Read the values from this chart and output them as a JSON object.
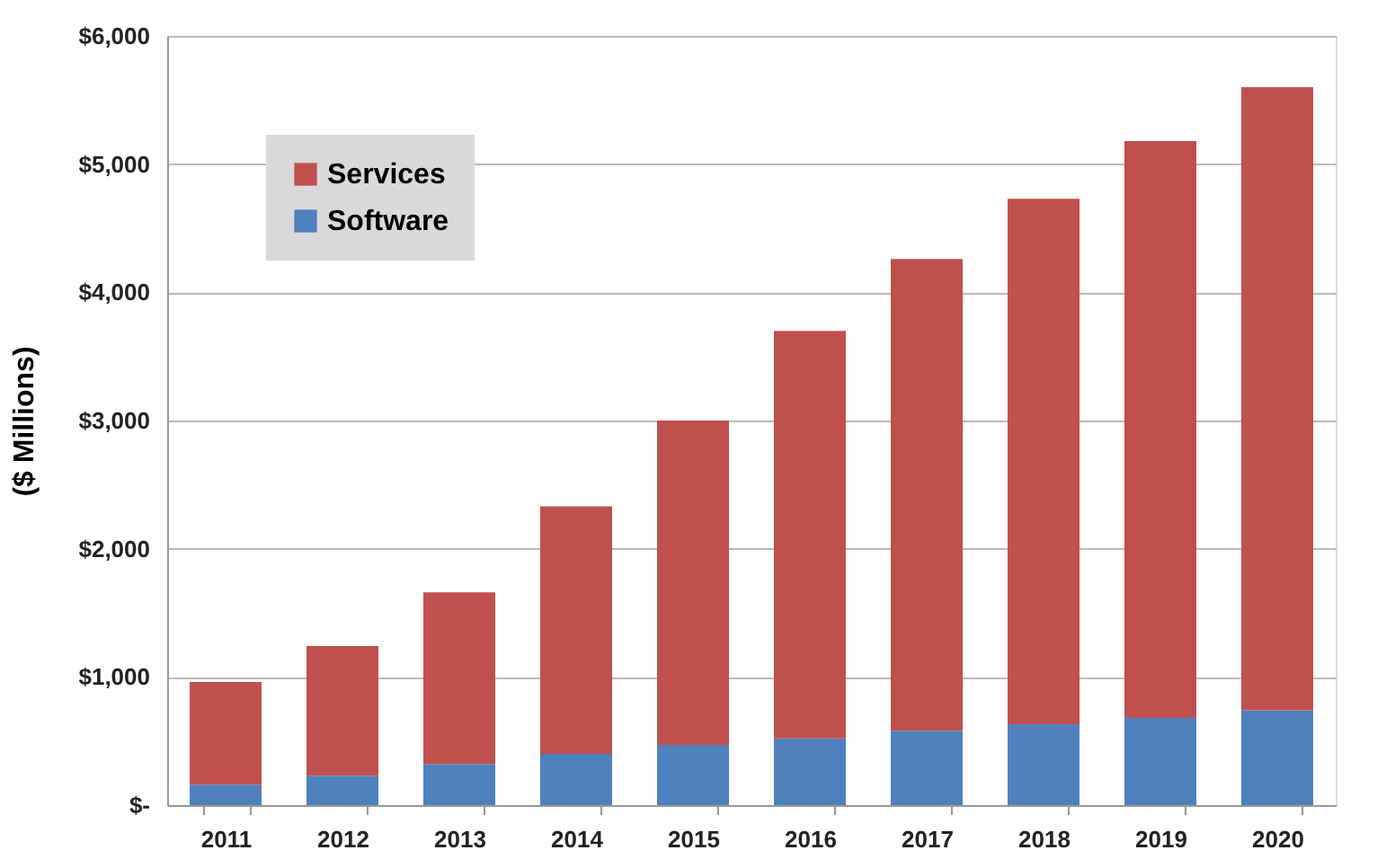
{
  "chart_data": {
    "type": "bar",
    "stacked": true,
    "ylabel": "($ Millions)",
    "categories": [
      "2011",
      "2012",
      "2013",
      "2014",
      "2015",
      "2016",
      "2017",
      "2018",
      "2019",
      "2020"
    ],
    "series": [
      {
        "name": "Software",
        "color": "#4f81bd",
        "values": [
          160,
          230,
          320,
          400,
          470,
          520,
          580,
          630,
          680,
          740
        ]
      },
      {
        "name": "Services",
        "color": "#c0504d",
        "values": [
          800,
          1010,
          1340,
          1930,
          2530,
          3180,
          3680,
          4100,
          4500,
          4860
        ]
      }
    ],
    "ylim": [
      0,
      6000
    ],
    "yticks": [
      {
        "value": 0,
        "label": "$-"
      },
      {
        "value": 1000,
        "label": "$1,000"
      },
      {
        "value": 2000,
        "label": "$2,000"
      },
      {
        "value": 3000,
        "label": "$3,000"
      },
      {
        "value": 4000,
        "label": "$4,000"
      },
      {
        "value": 5000,
        "label": "$5,000"
      },
      {
        "value": 6000,
        "label": "$6,000"
      }
    ],
    "grid": "y",
    "legend": "top left"
  }
}
